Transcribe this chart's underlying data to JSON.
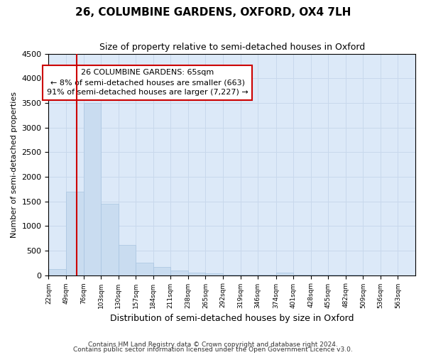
{
  "title": "26, COLUMBINE GARDENS, OXFORD, OX4 7LH",
  "subtitle": "Size of property relative to semi-detached houses in Oxford",
  "xlabel": "Distribution of semi-detached houses by size in Oxford",
  "ylabel": "Number of semi-detached properties",
  "footnote1": "Contains HM Land Registry data © Crown copyright and database right 2024.",
  "footnote2": "Contains public sector information licensed under the Open Government Licence v3.0.",
  "annotation_title": "26 COLUMBINE GARDENS: 65sqm",
  "annotation_line1": "← 8% of semi-detached houses are smaller (663)",
  "annotation_line2": "91% of semi-detached houses are larger (7,227) →",
  "property_size": 65,
  "bin_labels": [
    "22sqm",
    "49sqm",
    "76sqm",
    "103sqm",
    "130sqm",
    "157sqm",
    "184sqm",
    "211sqm",
    "238sqm",
    "265sqm",
    "292sqm",
    "319sqm",
    "346sqm",
    "374sqm",
    "401sqm",
    "428sqm",
    "455sqm",
    "482sqm",
    "509sqm",
    "536sqm",
    "563sqm"
  ],
  "bin_edges": [
    22,
    49,
    76,
    103,
    130,
    157,
    184,
    211,
    238,
    265,
    292,
    319,
    346,
    374,
    401,
    428,
    455,
    482,
    509,
    536,
    563,
    590
  ],
  "bar_values": [
    130,
    1700,
    3500,
    1450,
    620,
    260,
    160,
    90,
    50,
    30,
    15,
    10,
    7,
    50,
    5,
    3,
    2,
    2,
    1,
    1,
    1
  ],
  "bar_color": "#c9dcf0",
  "bar_edge_color": "#a8c4e0",
  "red_line_x": 65,
  "annotation_box_color": "#ffffff",
  "annotation_box_edge": "#cc0000",
  "ylim": [
    0,
    4500
  ],
  "yticks": [
    0,
    500,
    1000,
    1500,
    2000,
    2500,
    3000,
    3500,
    4000,
    4500
  ],
  "grid_color": "#c8d8ec",
  "background_color": "#dce9f8"
}
